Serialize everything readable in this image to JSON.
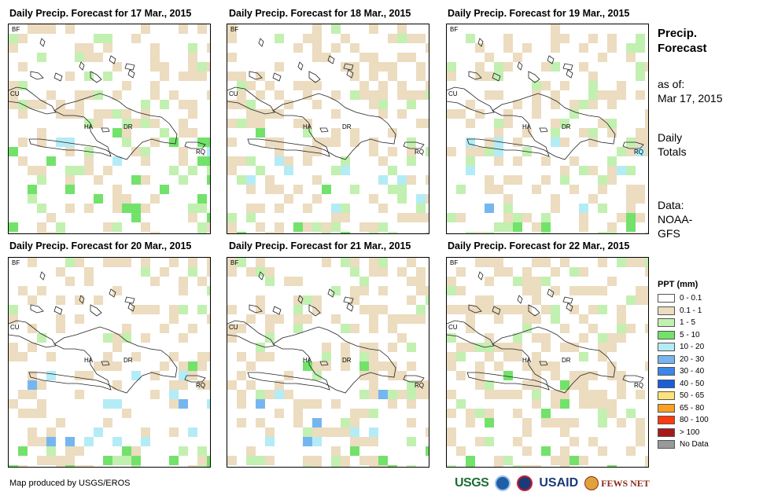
{
  "panels": [
    {
      "title": "Daily Precip. Forecast for 17 Mar., 2015"
    },
    {
      "title": "Daily Precip. Forecast for 18 Mar., 2015"
    },
    {
      "title": "Daily Precip. Forecast for 19 Mar., 2015"
    },
    {
      "title": "Daily Precip. Forecast for 20 Mar., 2015"
    },
    {
      "title": "Daily Precip. Forecast for 21 Mar., 2015"
    },
    {
      "title": "Daily Precip. Forecast for 22 Mar., 2015"
    }
  ],
  "map_labels": {
    "bf": "BF",
    "cu": "CU",
    "ha": "HA",
    "dr": "DR",
    "rq": "RQ"
  },
  "side": {
    "title_line1": "Precip.",
    "title_line2": "Forecast",
    "asof_line1": "as of:",
    "asof_line2": "Mar 17, 2015",
    "totals_line1": "Daily",
    "totals_line2": "Totals",
    "data_line1": "Data:",
    "data_line2": "NOAA-",
    "data_line3": "GFS"
  },
  "legend": {
    "title": "PPT (mm)",
    "items": [
      {
        "label": "0 - 0.1",
        "color": "#ffffff"
      },
      {
        "label": "0.1 - 1",
        "color": "#ecdcc0"
      },
      {
        "label": "1 - 5",
        "color": "#c2f0b0"
      },
      {
        "label": "5 - 10",
        "color": "#72e26a"
      },
      {
        "label": "10 - 20",
        "color": "#b4ecf6"
      },
      {
        "label": "20 - 30",
        "color": "#76b6f0"
      },
      {
        "label": "30 - 40",
        "color": "#3a86ea"
      },
      {
        "label": "40 - 50",
        "color": "#1a5ed8"
      },
      {
        "label": "50 - 65",
        "color": "#fde27a"
      },
      {
        "label": "65 - 80",
        "color": "#fba024"
      },
      {
        "label": "80 - 100",
        "color": "#fb3a10"
      },
      {
        "label": "> 100",
        "color": "#a81a1a"
      },
      {
        "label": "No Data",
        "color": "#999999"
      }
    ]
  },
  "footer": {
    "credit": "Map produced by USGS/EROS",
    "logo_usgs": "USGS",
    "logo_usaid": "USAID",
    "logo_fews": "FEWS NET"
  }
}
